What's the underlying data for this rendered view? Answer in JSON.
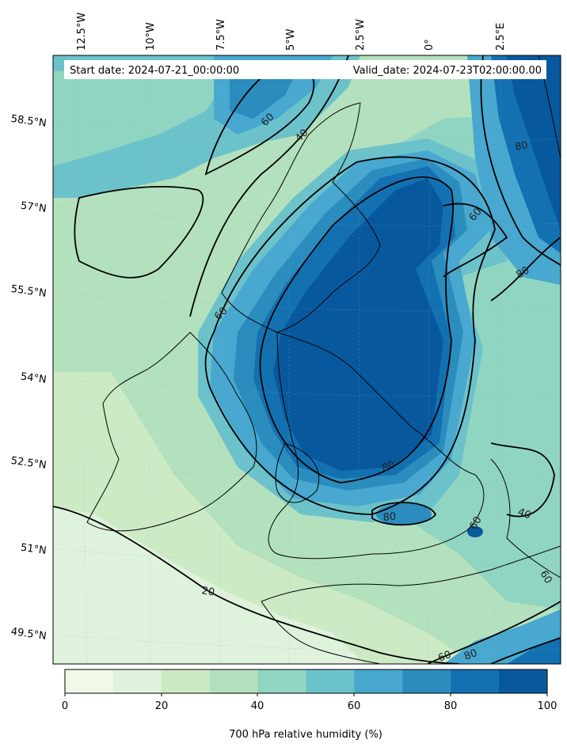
{
  "header": {
    "start_date": "Start date: 2024-07-21_00:00:00",
    "valid_date": "Valid_date: 2024-07-23T02:00:00.00"
  },
  "map": {
    "top_lon_labels": [
      "12.5°W",
      "10°W",
      "7.5°W",
      "5°W",
      "2.5°W",
      "0°",
      "2.5°E"
    ],
    "left_lat_labels": [
      "58.5°N",
      "57°N",
      "55.5°N",
      "54°N",
      "52.5°N",
      "51°N",
      "49.5°N"
    ],
    "contour_labels": [
      "60",
      "40",
      "80",
      "60",
      "80",
      "60",
      "80",
      "80",
      "60",
      "40",
      "20",
      "60",
      "60",
      "80"
    ]
  },
  "colorbar": {
    "title": "700 hPa relative humidity (%)",
    "tick_labels": [
      "0",
      "20",
      "40",
      "60",
      "80",
      "100"
    ],
    "colors": [
      "#f0f9e8",
      "#dff2dc",
      "#ccebc5",
      "#b3e1bd",
      "#90d5c2",
      "#6cc2ca",
      "#48a8cf",
      "#2b8cbe",
      "#1371b2",
      "#08589e"
    ]
  }
}
